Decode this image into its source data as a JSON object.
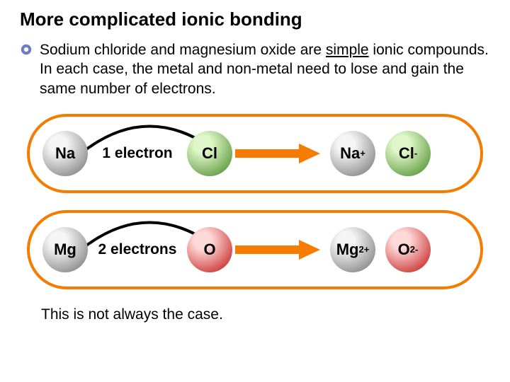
{
  "title": "More complicated ionic bonding",
  "paragraph": {
    "pre": "Sodium chloride and magnesium oxide are ",
    "underlined": "simple",
    "post": " ionic compounds. In each case, the metal and non-metal need to lose and gain the same number of electrons."
  },
  "rows": [
    {
      "border_color": "#f57c00",
      "metal": {
        "label": "Na",
        "gradient_inner": "#f5f5f5",
        "gradient_outer": "#777777"
      },
      "transfer": "1 electron",
      "nonmetal": {
        "label": "Cl",
        "gradient_inner": "#dff7c8",
        "gradient_outer": "#4a8a2a"
      },
      "arrow_color": "#f57c00",
      "cation": {
        "label": "Na",
        "sup": "+",
        "gradient_inner": "#f5f5f5",
        "gradient_outer": "#777777"
      },
      "anion": {
        "label": "Cl",
        "sup": "-",
        "gradient_inner": "#dff7c8",
        "gradient_outer": "#4a8a2a"
      }
    },
    {
      "border_color": "#f57c00",
      "metal": {
        "label": "Mg",
        "gradient_inner": "#f5f5f5",
        "gradient_outer": "#777777"
      },
      "transfer": "2 electrons",
      "nonmetal": {
        "label": "O",
        "gradient_inner": "#ffd9d9",
        "gradient_outer": "#c21919"
      },
      "arrow_color": "#f57c00",
      "cation": {
        "label": "Mg",
        "sup": "2+",
        "gradient_inner": "#f5f5f5",
        "gradient_outer": "#777777"
      },
      "anion": {
        "label": "O",
        "sup": "2-",
        "gradient_inner": "#ffd9d9",
        "gradient_outer": "#c21919"
      }
    }
  ],
  "arc_color": "#000000",
  "footer": "This is not always the case.",
  "bullet": {
    "outer": "#6a7cc4",
    "inner": "#ffffff"
  }
}
